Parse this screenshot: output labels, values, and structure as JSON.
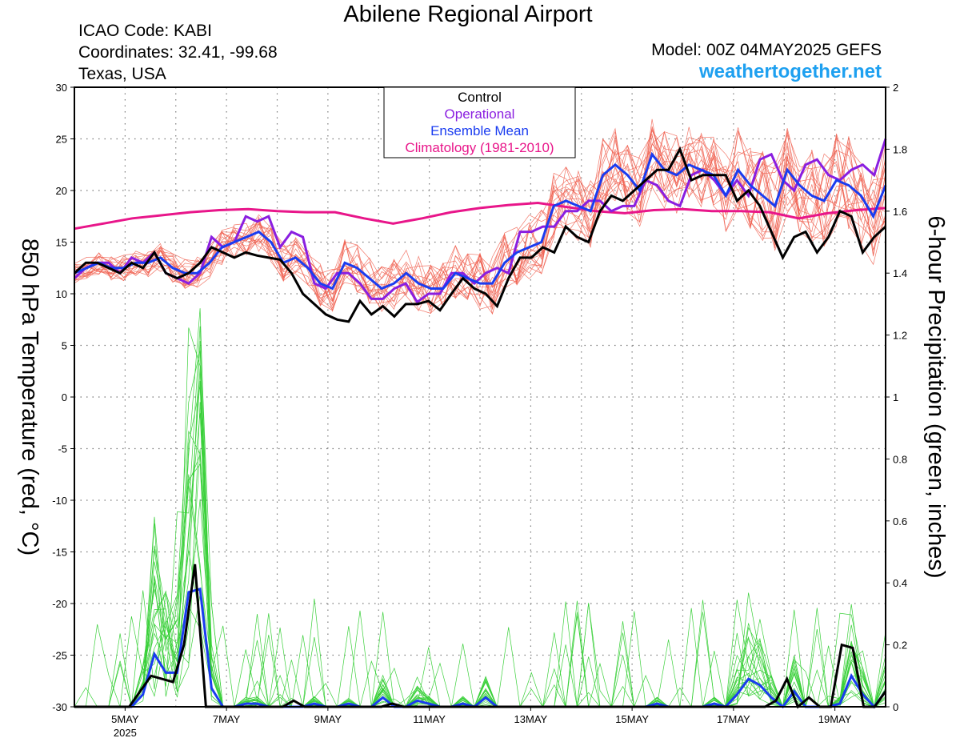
{
  "header": {
    "title": "Abilene Regional Airport",
    "icao": "ICAO Code: KABI",
    "coordinates": "Coordinates: 32.41, -99.68",
    "region": "Texas, USA",
    "model": "Model: 00Z 04MAY2025 GEFS",
    "site": "weathertogether.net"
  },
  "colors": {
    "control": "#000000",
    "operational": "#8a1ee0",
    "mean": "#1a3cf0",
    "climatology": "#e8168a",
    "members_temp": "#f06050",
    "members_precip": "#3ad03a",
    "site": "#1ea0f0"
  },
  "chart_data": {
    "type": "line",
    "ylabel_left": "850 hPa Temperature (red, °C)",
    "ylabel_right": "6-hour Precipitation (green, inches)",
    "ylim_left": [
      -30,
      30
    ],
    "ylim_right": [
      0,
      2
    ],
    "yticks_left": [
      "30",
      "25",
      "20",
      "15",
      "10",
      "5",
      "0",
      "-5",
      "-10",
      "-15",
      "-20",
      "-25",
      "-30"
    ],
    "yticks_right": [
      "2",
      "1.8",
      "1.6",
      "1.4",
      "1.2",
      "1",
      "0.8",
      "0.6",
      "0.4",
      "0.2",
      "0"
    ],
    "xticks": [
      {
        "label": "5MAY",
        "sub": "2025",
        "hour": 24
      },
      {
        "label": "7MAY",
        "sub": "",
        "hour": 72
      },
      {
        "label": "9MAY",
        "sub": "",
        "hour": 120
      },
      {
        "label": "11MAY",
        "sub": "",
        "hour": 168
      },
      {
        "label": "13MAY",
        "sub": "",
        "hour": 216
      },
      {
        "label": "15MAY",
        "sub": "",
        "hour": 264
      },
      {
        "label": "17MAY",
        "sub": "",
        "hour": 312
      },
      {
        "label": "19MAY",
        "sub": "",
        "hour": 360
      }
    ],
    "x_range_hours": [
      0,
      384
    ],
    "grid": true,
    "legend": {
      "position": "top-center",
      "entries": [
        {
          "label": "Control",
          "color": "#000000"
        },
        {
          "label": "Operational",
          "color": "#8a1ee0"
        },
        {
          "label": "Ensemble Mean",
          "color": "#1a3cf0"
        },
        {
          "label": "Climatology (1981-2010)",
          "color": "#e8168a"
        }
      ]
    },
    "series_temperature": {
      "control": [
        12,
        13,
        13,
        12.5,
        12,
        13,
        12.5,
        14,
        12,
        11.5,
        12,
        13,
        14.5,
        14,
        13.5,
        14,
        13.7,
        13.5,
        13.3,
        12,
        10,
        9,
        8,
        7.5,
        7.3,
        9.3,
        8,
        8.8,
        7.8,
        9,
        9,
        9.3,
        8.4,
        10,
        11.5,
        10.5,
        10,
        8.8,
        11.5,
        13.5,
        13.5,
        14.5,
        14,
        16.5,
        15.5,
        15,
        18,
        19.5,
        19,
        20,
        21,
        22,
        22,
        24,
        21,
        21.5,
        21.5,
        21.5,
        19,
        20,
        18.5,
        16,
        13.5,
        15.5,
        16,
        14,
        15.5,
        18,
        17.5,
        14,
        15.5,
        16.5
      ],
      "operational": [
        11.5,
        12.5,
        13,
        13,
        12,
        13.5,
        13,
        14,
        12,
        11.5,
        11,
        12,
        15.5,
        14.5,
        15,
        17.5,
        17,
        17.5,
        14.5,
        16,
        15.5,
        11,
        10.5,
        12,
        12,
        11,
        9.5,
        9.5,
        10.5,
        11,
        9.2,
        10,
        10,
        12,
        12,
        11,
        12,
        12.5,
        12,
        16,
        16,
        16.5,
        16.5,
        18,
        18,
        19,
        19,
        18,
        18.5,
        18.5,
        21,
        20.5,
        19,
        18.5,
        21.5,
        22,
        21,
        19.5,
        21,
        19.5,
        23,
        23.5,
        21,
        20,
        22.5,
        23,
        21.5,
        21,
        22,
        22.5,
        21.5,
        25
      ],
      "mean": [
        12,
        12.5,
        13,
        12.5,
        12.5,
        13,
        13,
        13.5,
        12.5,
        12,
        12,
        13,
        14.5,
        15,
        15.5,
        16,
        15,
        13,
        13.5,
        12.5,
        11,
        10.5,
        13,
        12.5,
        11.5,
        10.5,
        11,
        12,
        11,
        10.5,
        10.5,
        12,
        11.5,
        11,
        11,
        13,
        14,
        14.5,
        15,
        18.5,
        19,
        18.5,
        18,
        21.5,
        22.5,
        21.5,
        20,
        23.5,
        22,
        21.5,
        22.5,
        22,
        21.5,
        19.5,
        22,
        20.5,
        19.5,
        18.5,
        22,
        20.5,
        19.5,
        19,
        21,
        20.5,
        19.5,
        17.5,
        20.5
      ],
      "climatology": [
        16.3,
        16.8,
        17.3,
        17.6,
        17.9,
        18.1,
        18.2,
        18.0,
        17.9,
        17.9,
        17.3,
        16.8,
        17.3,
        17.9,
        18.3,
        18.6,
        18.8,
        18.4,
        18.0,
        17.8,
        18.1,
        18.2,
        18.0,
        18.0,
        17.9,
        17.3,
        17.8,
        18.1,
        18.3
      ]
    },
    "series_precip": {
      "control": [
        0,
        0,
        0,
        0,
        0,
        0,
        0.05,
        0.1,
        0.09,
        0.08,
        0.2,
        0.46,
        0,
        0,
        0,
        0,
        0,
        0,
        0,
        0,
        0.02,
        0,
        0,
        0,
        0,
        0,
        0,
        0,
        0,
        0.01,
        0,
        0,
        0,
        0,
        0,
        0,
        0,
        0,
        0,
        0,
        0,
        0,
        0,
        0,
        0,
        0,
        0,
        0,
        0,
        0,
        0,
        0,
        0,
        0,
        0,
        0,
        0,
        0,
        0,
        0,
        0,
        0,
        0,
        0,
        0.02,
        0.09,
        0,
        0.03,
        0,
        0,
        0.2,
        0.19,
        0,
        0,
        0.05
      ],
      "mean": [
        0,
        0,
        0,
        0,
        0,
        0,
        0.04,
        0.17,
        0.11,
        0.11,
        0.37,
        0.38,
        0.06,
        0,
        0,
        0.01,
        0.01,
        0,
        0,
        0,
        0,
        0.01,
        0,
        0,
        0.01,
        0,
        0,
        0.03,
        0,
        0,
        0.02,
        0.01,
        0,
        0,
        0.01,
        0,
        0.03,
        0,
        0,
        0,
        0,
        0,
        0,
        0,
        0,
        0,
        0,
        0,
        0,
        0,
        0,
        0.01,
        0,
        0,
        0,
        0,
        0.01,
        0,
        0.04,
        0.09,
        0.07,
        0.03,
        0,
        0.05,
        0,
        0,
        0,
        0.01,
        0.1,
        0.04,
        0,
        0.05
      ]
    }
  }
}
